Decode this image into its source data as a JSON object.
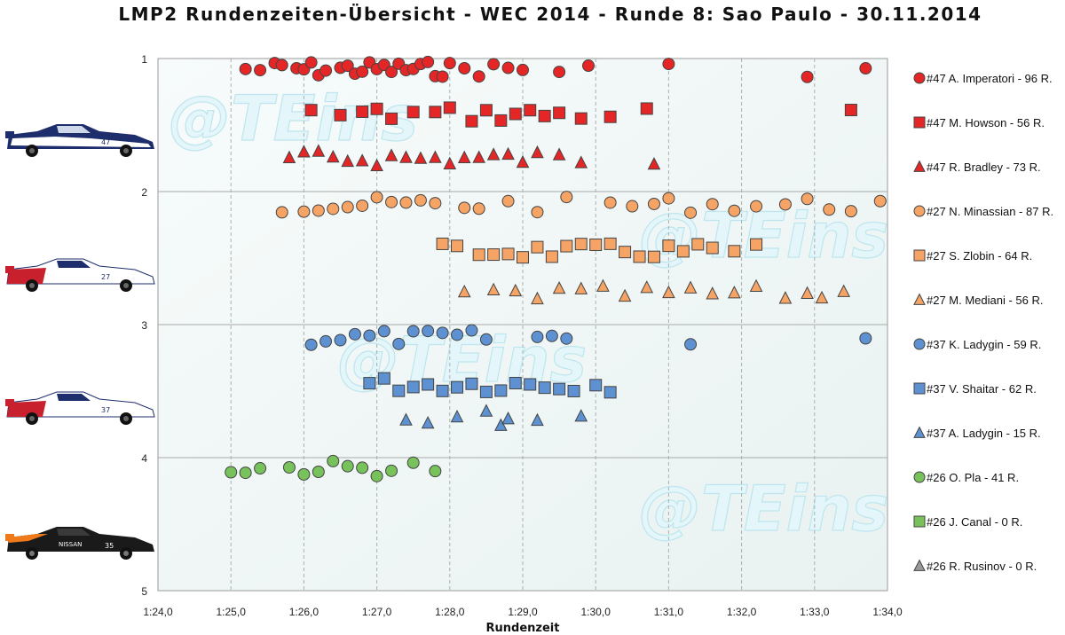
{
  "chart_data": {
    "type": "scatter",
    "title": "LMP2 Rundenzeiten-Übersicht - WEC 2014 - Runde 8: Sao Paulo - 30.11.2014",
    "xlabel": "Rundenzeit",
    "ylabel": "",
    "xlim": [
      84,
      94
    ],
    "ylim": [
      1,
      5
    ],
    "y_inverted": true,
    "x_ticks": [
      "1:24,0",
      "1:25,0",
      "1:26,0",
      "1:27,0",
      "1:28,0",
      "1:29,0",
      "1:30,0",
      "1:31,0",
      "1:32,0",
      "1:33,0",
      "1:34,0"
    ],
    "y_ticks": [
      "1",
      "2",
      "3",
      "4",
      "5"
    ],
    "grid": "vertical dashed, horizontal solid",
    "legend": "right",
    "watermark": "@TEins",
    "series": [
      {
        "name": "#47 A. Imperatori - 96 R.",
        "marker": "circle",
        "color": "#e52626",
        "y": 1.08,
        "laps": [
          85.2,
          85.4,
          85.6,
          85.7,
          85.9,
          86.0,
          86.1,
          86.2,
          86.3,
          86.5,
          86.6,
          86.7,
          86.8,
          86.9,
          87.0,
          87.1,
          87.2,
          87.3,
          87.4,
          87.5,
          87.6,
          87.7,
          87.8,
          87.9,
          88.0,
          88.2,
          88.4,
          88.6,
          88.8,
          89.0,
          89.5,
          89.9,
          91.0,
          92.9,
          93.7
        ]
      },
      {
        "name": "#47 M. Howson - 56 R.",
        "marker": "square",
        "color": "#e52626",
        "y": 1.42,
        "laps": [
          86.1,
          86.5,
          86.8,
          87.0,
          87.2,
          87.5,
          87.8,
          88.0,
          88.3,
          88.5,
          88.7,
          88.9,
          89.1,
          89.3,
          89.5,
          89.8,
          90.2,
          90.7,
          93.5
        ]
      },
      {
        "name": "#47 R. Bradley - 73 R.",
        "marker": "triangle",
        "color": "#e52626",
        "y": 1.75,
        "laps": [
          85.8,
          86.0,
          86.2,
          86.4,
          86.6,
          86.8,
          87.0,
          87.2,
          87.4,
          87.6,
          87.8,
          88.0,
          88.2,
          88.4,
          88.6,
          88.8,
          89.0,
          89.2,
          89.5,
          89.8,
          90.8
        ]
      },
      {
        "name": "#27 N. Minassian - 87 R.",
        "marker": "circle",
        "color": "#f5a466",
        "y": 2.1,
        "laps": [
          85.7,
          86.0,
          86.2,
          86.4,
          86.6,
          86.8,
          87.0,
          87.2,
          87.4,
          87.6,
          87.8,
          88.2,
          88.4,
          88.8,
          89.2,
          89.6,
          90.2,
          90.5,
          90.8,
          91.0,
          91.3,
          91.6,
          91.9,
          92.2,
          92.6,
          92.9,
          93.2,
          93.5,
          93.9
        ]
      },
      {
        "name": "#27 S. Zlobin - 64 R.",
        "marker": "square",
        "color": "#f5a466",
        "y": 2.45,
        "laps": [
          87.9,
          88.1,
          88.4,
          88.6,
          88.8,
          89.0,
          89.2,
          89.4,
          89.6,
          89.8,
          90.0,
          90.2,
          90.4,
          90.6,
          90.8,
          91.0,
          91.2,
          91.4,
          91.6,
          91.9,
          92.2
        ]
      },
      {
        "name": "#27 M. Mediani - 56 R.",
        "marker": "triangle",
        "color": "#f5a466",
        "y": 2.77,
        "laps": [
          88.2,
          88.6,
          88.9,
          89.2,
          89.5,
          89.8,
          90.1,
          90.4,
          90.7,
          91.0,
          91.3,
          91.6,
          91.9,
          92.2,
          92.6,
          92.9,
          93.1,
          93.4
        ]
      },
      {
        "name": "#37 K. Ladygin - 59 R.",
        "marker": "circle",
        "color": "#5d91d1",
        "y": 3.1,
        "laps": [
          86.1,
          86.3,
          86.5,
          86.7,
          86.9,
          87.1,
          87.3,
          87.5,
          87.7,
          87.9,
          88.1,
          88.3,
          88.5,
          89.2,
          89.4,
          89.6,
          91.3,
          93.7
        ]
      },
      {
        "name": "#37 V. Shaitar - 62 R.",
        "marker": "square",
        "color": "#5d91d1",
        "y": 3.45,
        "laps": [
          86.9,
          87.1,
          87.3,
          87.5,
          87.7,
          87.9,
          88.1,
          88.3,
          88.5,
          88.7,
          88.9,
          89.1,
          89.3,
          89.5,
          89.7,
          90.0,
          90.2
        ]
      },
      {
        "name": "#37 A. Ladygin - 15 R.",
        "marker": "triangle",
        "color": "#5d91d1",
        "y": 3.7,
        "laps": [
          87.4,
          87.7,
          88.1,
          88.5,
          88.7,
          88.8,
          89.2,
          89.8
        ]
      },
      {
        "name": "#26 O. Pla - 41 R.",
        "marker": "circle",
        "color": "#77c25b",
        "y": 4.08,
        "laps": [
          85.0,
          85.2,
          85.4,
          85.8,
          86.0,
          86.2,
          86.4,
          86.6,
          86.8,
          87.0,
          87.2,
          87.5,
          87.8
        ]
      },
      {
        "name": "#26 J. Canal - 0 R.",
        "marker": "square",
        "color": "#77c25b",
        "y": null,
        "laps": []
      },
      {
        "name": "#26 R. Rusinov - 0 R.",
        "marker": "triangle",
        "color": "#999999",
        "y": null,
        "laps": []
      }
    ]
  }
}
